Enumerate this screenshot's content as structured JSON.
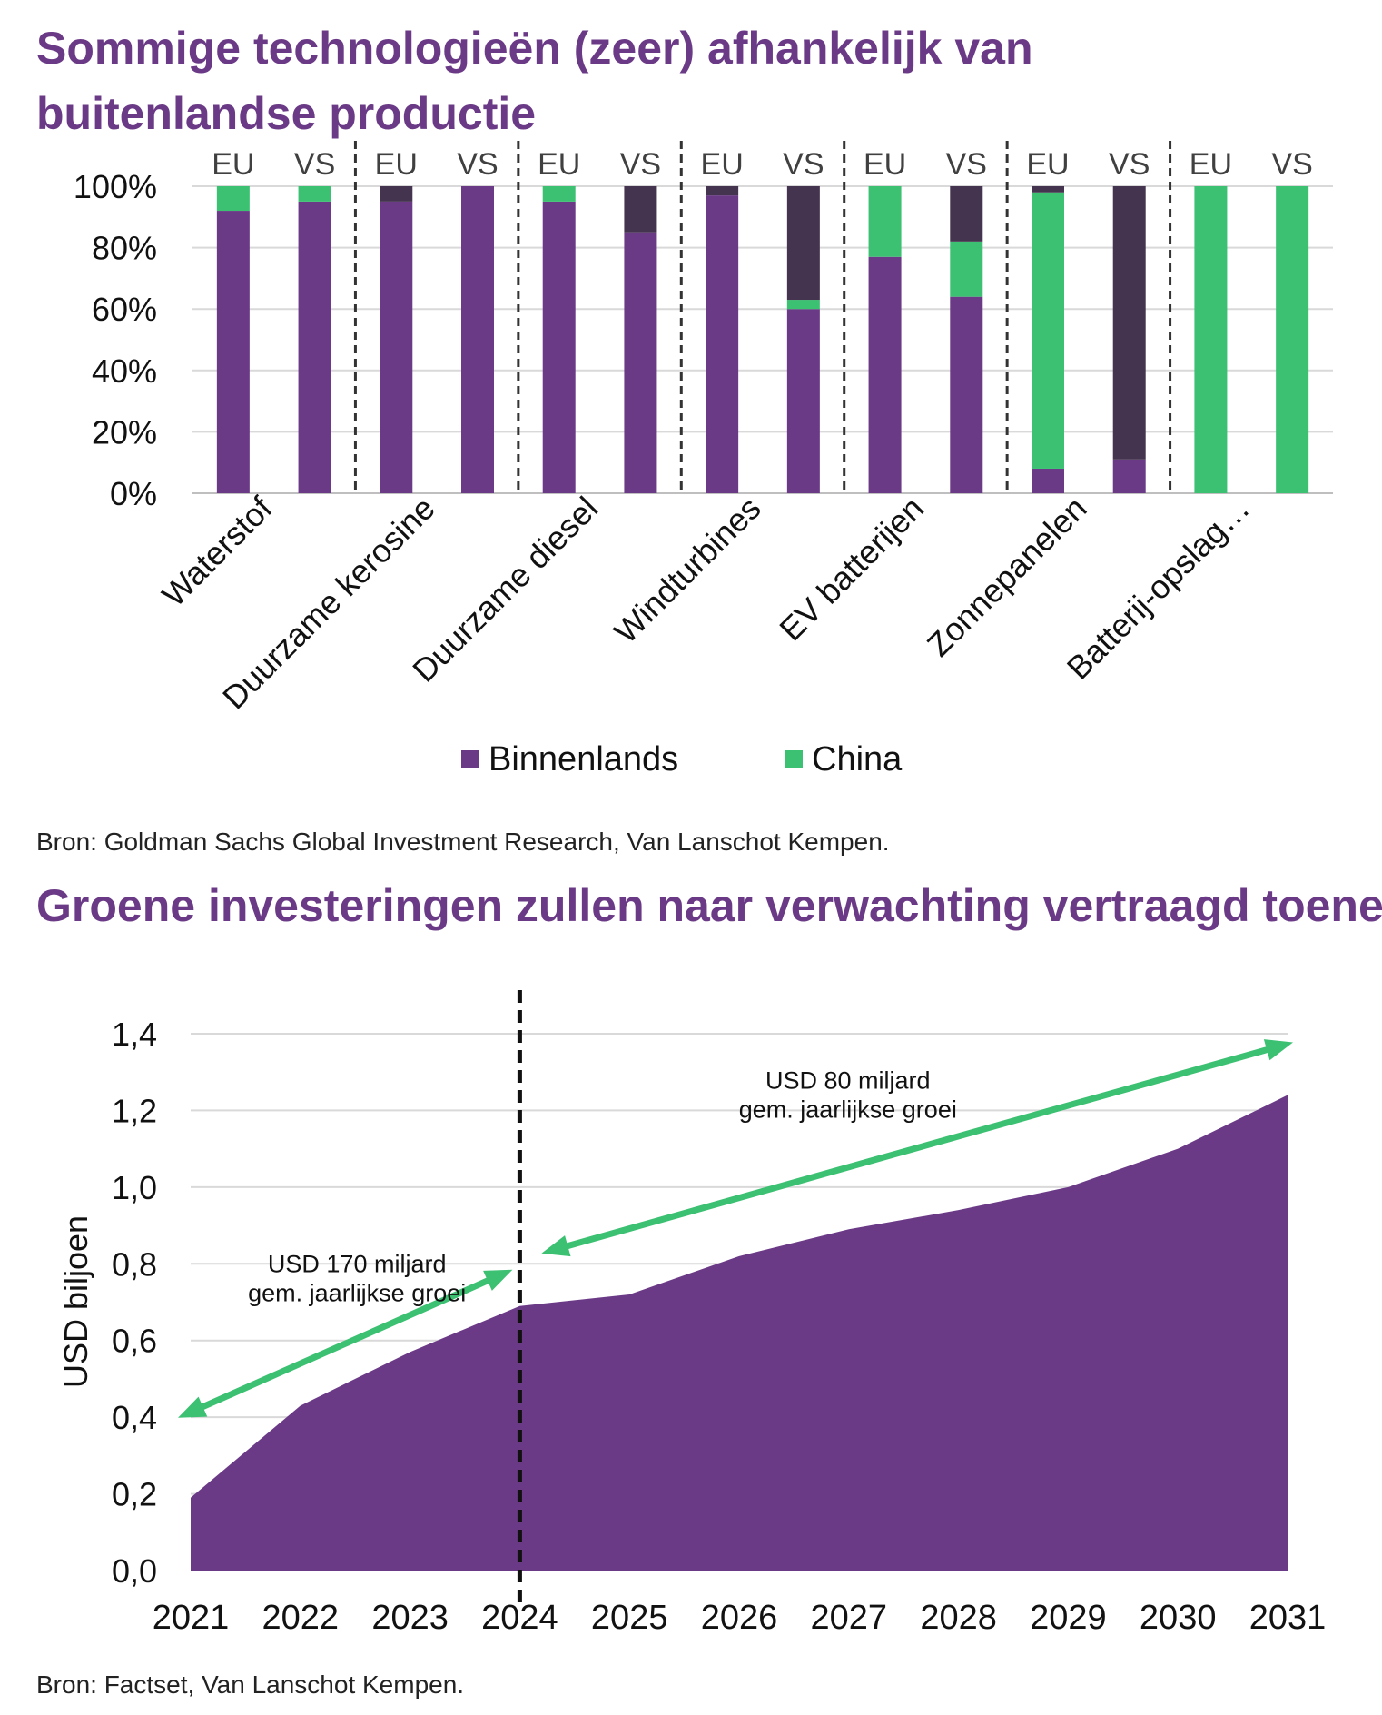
{
  "chart_data": [
    {
      "type": "bar",
      "stacked": true,
      "title": "Sommige technologieën (zeer) afhankelijk van buitenlandse productie",
      "source": "Bron: Goldman Sachs Global Investment Research, Van Lanschot Kempen.",
      "ylim": [
        0,
        100
      ],
      "yticks": [
        "0%",
        "20%",
        "40%",
        "60%",
        "80%",
        "100%"
      ],
      "groups": [
        "Waterstof",
        "Duurzame kerosine",
        "Duurzame diesel",
        "Windturbines",
        "EV batterijen",
        "Zonnepanelen",
        "Batterij-opslag…"
      ],
      "bar_labels": [
        "EU",
        "VS",
        "EU",
        "VS",
        "EU",
        "VS",
        "EU",
        "VS",
        "EU",
        "VS",
        "EU",
        "VS",
        "EU",
        "VS"
      ],
      "series": [
        {
          "name": "Binnenlands",
          "color": "#6b3a87",
          "values": [
            92,
            95,
            95,
            100,
            95,
            85,
            97,
            60,
            77,
            64,
            8,
            11,
            0,
            0
          ]
        },
        {
          "name": "China",
          "color": "#3cc072",
          "values": [
            8,
            5,
            0,
            0,
            5,
            0,
            0,
            3,
            23,
            18,
            90,
            0,
            100,
            100
          ]
        },
        {
          "name": "",
          "color": "#45344f",
          "values": [
            0,
            0,
            5,
            0,
            0,
            15,
            3,
            37,
            0,
            18,
            2,
            89,
            0,
            0
          ]
        }
      ],
      "legend": [
        "Binnenlands",
        "China"
      ]
    },
    {
      "type": "area",
      "title": "Groene investeringen zullen naar verwachting vertraagd toenemen",
      "source": "Bron: Factset, Van Lanschot Kempen.",
      "ylabel": "USD biljoen",
      "ylim": [
        0,
        1.4
      ],
      "yticks": [
        "0,0",
        "0,2",
        "0,4",
        "0,6",
        "0,8",
        "1,0",
        "1,2",
        "1,4"
      ],
      "x": [
        "2021",
        "2022",
        "2023",
        "2024",
        "2025",
        "2026",
        "2027",
        "2028",
        "2029",
        "2030",
        "2031"
      ],
      "values": [
        0.19,
        0.43,
        0.57,
        0.69,
        0.72,
        0.82,
        0.89,
        0.94,
        1.0,
        1.1,
        1.24
      ],
      "color": "#6b3a87",
      "marker_year": "2024",
      "annotations": [
        {
          "line1": "USD 170 miljard",
          "line2": "gem. jaarlijkse groei"
        },
        {
          "line1": "USD 80 miljard",
          "line2": "gem. jaarlijkse groei"
        }
      ]
    }
  ]
}
